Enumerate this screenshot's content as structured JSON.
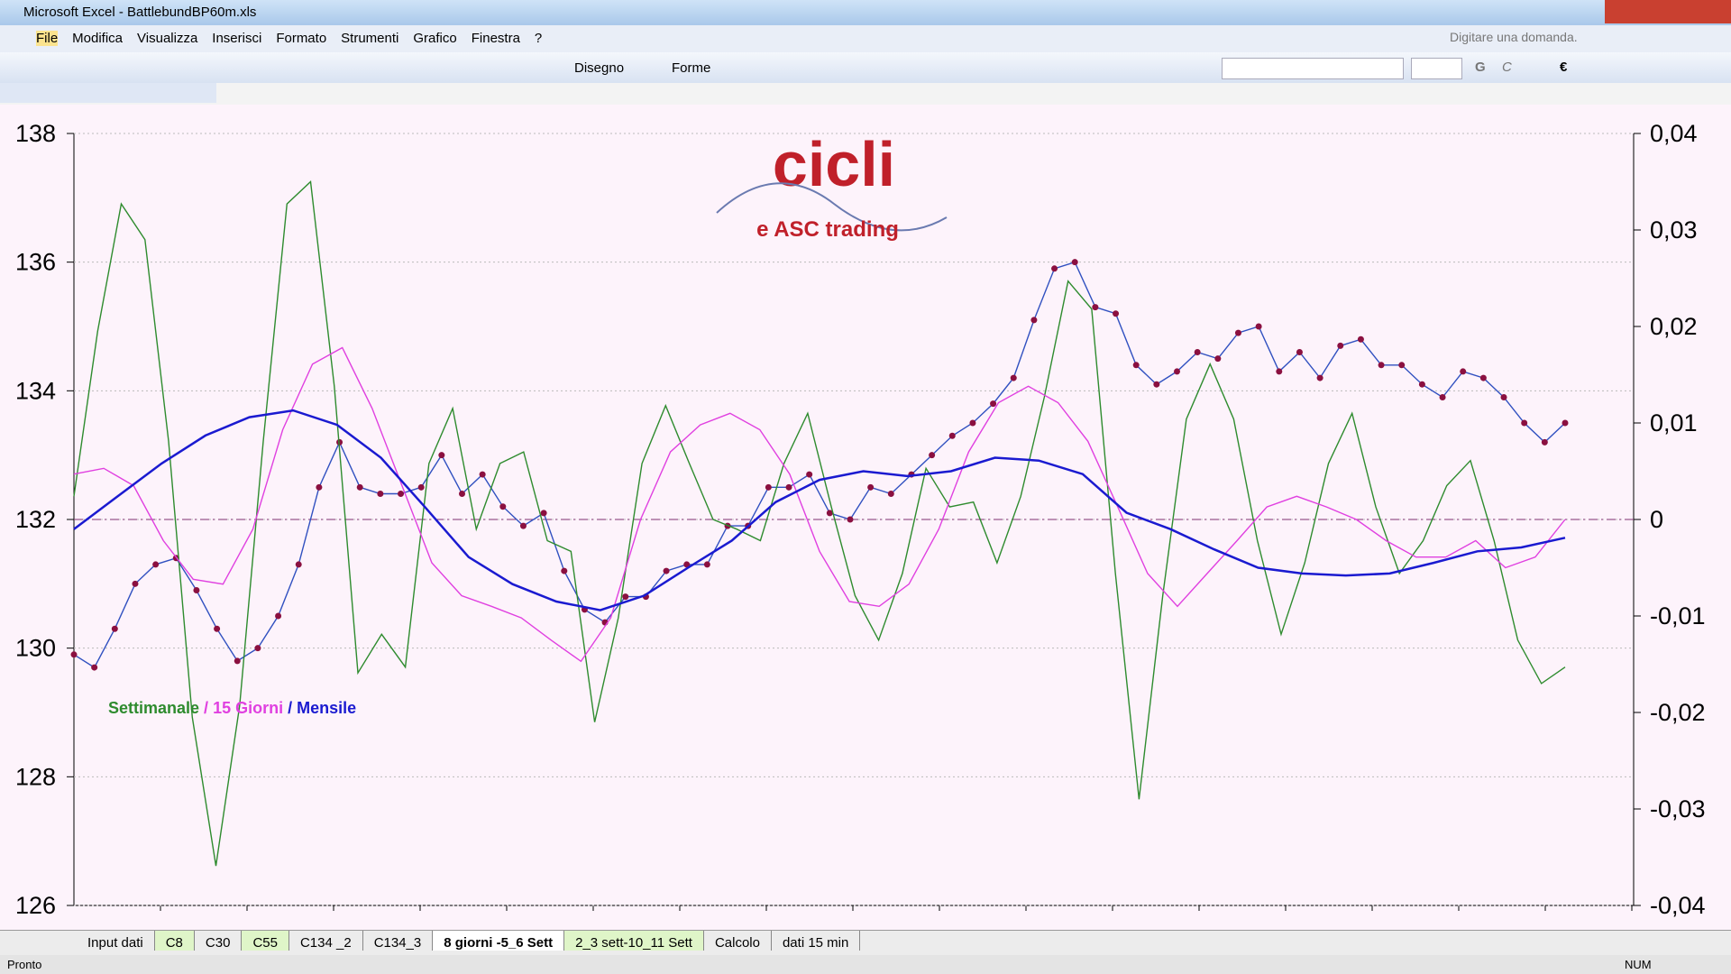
{
  "window": {
    "title": "Microsoft Excel - BattlebundBP60m.xls"
  },
  "menu": [
    "File",
    "Modifica",
    "Visualizza",
    "Inserisci",
    "Formato",
    "Strumenti",
    "Grafico",
    "Finestra",
    "?"
  ],
  "help_box": "Digitare una domanda.",
  "toolbar": {
    "draw": "Disegno",
    "shapes": "Forme",
    "bold": "G",
    "italic": "C",
    "euro": "€"
  },
  "logo": {
    "title": "cicli",
    "subtitle": "e ASC trading"
  },
  "chart_data": {
    "type": "line",
    "ylim": [
      126,
      138
    ],
    "yticks": [
      126,
      128,
      130,
      132,
      134,
      136,
      138
    ],
    "y2lim": [
      -0.04,
      0.04
    ],
    "y2ticks": [
      {
        "value": -0.04,
        "label": "-0,04"
      },
      {
        "value": -0.03,
        "label": "-0,03"
      },
      {
        "value": -0.02,
        "label": "-0,02"
      },
      {
        "value": -0.01,
        "label": "-0,01"
      },
      0,
      {
        "value": 0.01,
        "label": "0,01"
      },
      {
        "value": 0.02,
        "label": "0,02"
      },
      {
        "value": 0.03,
        "label": "0,03"
      },
      {
        "value": 0.04,
        "label": "0,04"
      }
    ],
    "legend_separator": "/",
    "series": [
      {
        "color": "#3050c0",
        "marker_color": "#8b1040",
        "values": [
          129.9,
          129.7,
          130.3,
          131,
          131.3,
          131.4,
          130.9,
          130.3,
          129.8,
          130,
          130.5,
          131.3,
          132.5,
          133.2,
          132.5,
          132.4,
          132.4,
          132.5,
          133,
          132.4,
          132.7,
          132.2,
          131.9,
          132.1,
          131.2,
          130.6,
          130.4,
          130.8,
          130.8,
          131.2,
          131.3,
          131.3,
          131.9,
          131.9,
          132.5,
          132.5,
          132.7,
          132.1,
          132,
          132.5,
          132.4,
          132.7,
          133,
          133.3,
          133.5,
          133.8,
          134.2,
          135.1,
          135.9,
          136,
          135.3,
          135.2,
          134.4,
          134.1,
          134.3,
          134.6,
          134.5,
          134.9,
          135,
          134.3,
          134.6,
          134.2,
          134.7,
          134.8,
          134.4,
          134.4,
          134.1,
          133.9,
          134.3,
          134.2,
          133.9,
          133.5,
          133.2,
          133.5
        ]
      },
      {
        "name": "Settimanale",
        "color": "#2e8b2e",
        "axis": "y2",
        "values": [
          0.0024,
          0.0195,
          0.0327,
          0.029,
          0.0081,
          -0.0205,
          -0.0359,
          -0.0193,
          0.0081,
          0.0327,
          0.035,
          0.0138,
          -0.0159,
          -0.0119,
          -0.0153,
          0.0058,
          0.0115,
          -0.001,
          0.0058,
          0.007,
          -0.0022,
          -0.0033,
          -0.021,
          -0.0102,
          0.0058,
          0.0118,
          0.0058,
          0,
          -0.001,
          -0.0022,
          0.0058,
          0.011,
          0.0013,
          -0.0079,
          -0.0125,
          -0.0056,
          0.0053,
          0.0013,
          0.0018,
          -0.0045,
          0.0024,
          0.0127,
          0.0247,
          0.0218,
          -0.0056,
          -0.029,
          -0.0079,
          0.0104,
          0.0161,
          0.0104,
          -0.0022,
          -0.0119,
          -0.0045,
          0.0058,
          0.011,
          0.0013,
          -0.0056,
          -0.0022,
          0.0035,
          0.0061,
          -0.0022,
          -0.0125,
          -0.017,
          -0.0153
        ]
      },
      {
        "name": "15 Giorni",
        "color": "#e040e0",
        "axis": "y2",
        "values": [
          0.0047,
          0.0053,
          0.0035,
          -0.0022,
          -0.0062,
          -0.0067,
          -0.001,
          0.0093,
          0.0161,
          0.0178,
          0.0115,
          0.0035,
          -0.0045,
          -0.0079,
          -0.009,
          -0.0102,
          -0.0125,
          -0.0147,
          -0.0102,
          0,
          0.007,
          0.0098,
          0.011,
          0.0093,
          0.0047,
          -0.0033,
          -0.0085,
          -0.009,
          -0.0067,
          -0.001,
          0.007,
          0.0121,
          0.0138,
          0.0121,
          0.0081,
          0.0013,
          -0.0056,
          -0.009,
          -0.0056,
          -0.0022,
          0.0013,
          0.0024,
          0.0013,
          0,
          -0.0022,
          -0.0039,
          -0.0039,
          -0.0022,
          -0.005,
          -0.0039,
          0
        ]
      },
      {
        "name": "Mensile",
        "color": "#1a1ad0",
        "axis": "y2",
        "values": [
          -0.001,
          0.0024,
          0.0058,
          0.0087,
          0.0106,
          0.0113,
          0.0098,
          0.0064,
          0.0013,
          -0.0039,
          -0.0067,
          -0.0085,
          -0.0094,
          -0.0079,
          -0.005,
          -0.0022,
          0.0018,
          0.0041,
          0.005,
          0.0045,
          0.005,
          0.0064,
          0.0061,
          0.0047,
          0.0007,
          -0.001,
          -0.0031,
          -0.005,
          -0.0056,
          -0.0058,
          -0.0056,
          -0.0045,
          -0.0033,
          -0.0029,
          -0.0019
        ]
      }
    ]
  },
  "sheet_tabs": [
    "Input dati",
    "C8",
    "C30",
    "C55",
    "C134 _2",
    "C134_3",
    "8 giorni -5_6 Sett",
    "2_3 sett-10_11 Sett",
    "Calcolo",
    "dati 15 min"
  ],
  "status": {
    "left": "Pronto",
    "right": "NUM"
  }
}
